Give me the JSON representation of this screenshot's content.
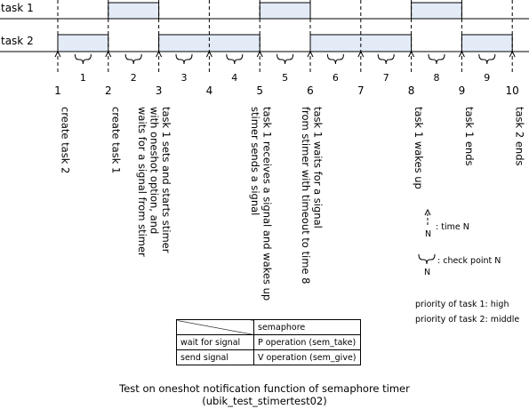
{
  "tasks": [
    {
      "label": "task 1"
    },
    {
      "label": "task 2"
    }
  ],
  "timeline": {
    "time_points": [
      "1",
      "2",
      "3",
      "4",
      "5",
      "6",
      "7",
      "8",
      "9",
      "10"
    ],
    "check_points": [
      "1",
      "2",
      "3",
      "4",
      "5",
      "6",
      "7",
      "8",
      "9"
    ],
    "task1_running": [
      [
        2,
        3
      ],
      [
        5,
        6
      ],
      [
        8,
        9
      ]
    ],
    "task2_running": [
      [
        1,
        2
      ],
      [
        3,
        5
      ],
      [
        6,
        8
      ],
      [
        9,
        10
      ]
    ]
  },
  "events": [
    {
      "time": "1",
      "lines": [
        "create task 2"
      ]
    },
    {
      "time": "2",
      "lines": [
        "create task 1"
      ]
    },
    {
      "time": "3",
      "lines": [
        "task 1 sets and starts stimer",
        "with oneshot option, and",
        "waits for a signal from stimer"
      ]
    },
    {
      "time": "5",
      "lines": [
        "task 1 receives a signal and wakes up",
        "stimer sends a signal"
      ]
    },
    {
      "time": "6",
      "lines": [
        "task 1 waits for a signal",
        "from stimer with timeout to time 8"
      ]
    },
    {
      "time": "8",
      "lines": [
        "task 1 wakes up"
      ]
    },
    {
      "time": "9",
      "lines": [
        "task 1 ends"
      ]
    },
    {
      "time": "10",
      "lines": [
        "task 2 ends"
      ]
    }
  ],
  "legend": {
    "time_label": ": time N",
    "time_n": "N",
    "checkpoint_label": ": check point N",
    "checkpoint_n": "N",
    "priority_task1": "priority of task 1: high",
    "priority_task2": "priority of task 2: middle"
  },
  "table": {
    "header": "semaphore",
    "rows": [
      {
        "action": "wait for signal",
        "operation": "P operation (sem_take)"
      },
      {
        "action": "send signal",
        "operation": "V operation (sem_give)"
      }
    ]
  },
  "caption": {
    "title": "Test on oneshot notification function of semaphore timer",
    "subtitle": "(ubik_test_stimertest02)"
  },
  "colors": {
    "bar_fill": "#e3ebf7",
    "line": "#000000"
  }
}
